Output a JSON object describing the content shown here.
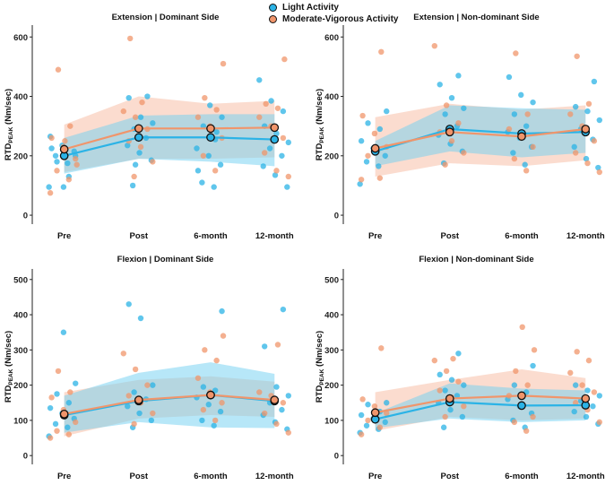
{
  "legend": {
    "light_label": "Light Activity",
    "mv_label": "Moderate-Vigorous Activity"
  },
  "colors": {
    "light": "#2BB3E6",
    "mv": "#F0956B",
    "light_band": "#6FD0F2",
    "mv_band": "#F8B9A0"
  },
  "ylabel_main": "RTD",
  "ylabel_sub": "PEAK",
  "ylabel_unit": " (Nm/sec)",
  "chart_data": [
    {
      "type": "line",
      "title": "Extension | Dominant Side",
      "categories": [
        "Pre",
        "Post",
        "6-month",
        "12-month"
      ],
      "ylim": [
        -30,
        640
      ],
      "yticks": [
        0,
        200,
        400,
        600
      ],
      "series": [
        {
          "name": "Light Activity",
          "means": [
            200,
            262,
            262,
            255
          ],
          "band_low": [
            140,
            190,
            180,
            165
          ],
          "band_high": [
            260,
            335,
            340,
            340
          ],
          "points": [
            [
              95,
              175,
              200,
              215,
              235,
              265,
              130,
              180,
              200,
              95,
              225
            ],
            [
              100,
              185,
              210,
              235,
              260,
              290,
              310,
              330,
              395,
              400,
              170
            ],
            [
              95,
              110,
              170,
              200,
              225,
              255,
              300,
              330,
              370,
              150,
              280
            ],
            [
              95,
              135,
              165,
              200,
              225,
              245,
              275,
              300,
              350,
              385,
              455
            ]
          ]
        },
        {
          "name": "Moderate-Vigorous Activity",
          "means": [
            222,
            292,
            292,
            295
          ],
          "band_low": [
            145,
            190,
            190,
            195
          ],
          "band_high": [
            305,
            400,
            375,
            385
          ],
          "points": [
            [
              75,
              120,
              150,
              190,
              230,
              260,
              300,
              490,
              170,
              250
            ],
            [
              130,
              180,
              230,
              250,
              290,
              330,
              350,
              380,
              595
            ],
            [
              150,
              200,
              260,
              300,
              330,
              355,
              395,
              510
            ],
            [
              130,
              150,
              210,
              260,
              300,
              330,
              360,
              375,
              525
            ]
          ]
        }
      ]
    },
    {
      "type": "line",
      "title": "Extension | Non-dominant Side",
      "categories": [
        "Pre",
        "Post",
        "6-month",
        "12-month"
      ],
      "ylim": [
        -30,
        640
      ],
      "yticks": [
        0,
        200,
        400,
        600
      ],
      "series": [
        {
          "name": "Light Activity",
          "means": [
            215,
            290,
            275,
            280
          ],
          "band_low": [
            165,
            215,
            195,
            210
          ],
          "band_high": [
            250,
            370,
            360,
            355
          ],
          "points": [
            [
              105,
              165,
              180,
              200,
              225,
              250,
              290,
              310,
              350
            ],
            [
              175,
              215,
              240,
              270,
              300,
              340,
              360,
              395,
              440,
              470
            ],
            [
              170,
              210,
              230,
              260,
              280,
              300,
              340,
              380,
              405,
              465
            ],
            [
              160,
              190,
              230,
              255,
              290,
              320,
              350,
              365,
              450
            ]
          ]
        },
        {
          "name": "Moderate-Vigorous Activity",
          "means": [
            225,
            280,
            265,
            290
          ],
          "band_low": [
            130,
            175,
            165,
            185
          ],
          "band_high": [
            330,
            375,
            355,
            370
          ],
          "points": [
            [
              120,
              125,
              200,
              230,
              275,
              335,
              550
            ],
            [
              170,
              210,
              250,
              280,
              310,
              370,
              570
            ],
            [
              150,
              190,
              230,
              260,
              290,
              340,
              545
            ],
            [
              145,
              175,
              210,
              250,
              300,
              340,
              375,
              535
            ]
          ]
        }
      ]
    },
    {
      "type": "line",
      "title": "Flexion | Dominant Side",
      "categories": [
        "Pre",
        "Post",
        "6-month",
        "12-month"
      ],
      "ylim": [
        -25,
        530
      ],
      "yticks": [
        0,
        100,
        200,
        300,
        400,
        500
      ],
      "series": [
        {
          "name": "Light Activity",
          "means": [
            115,
            155,
            172,
            155
          ],
          "band_low": [
            65,
            95,
            80,
            78
          ],
          "band_high": [
            170,
            235,
            265,
            232
          ],
          "points": [
            [
              55,
              80,
              90,
              105,
              120,
              135,
              150,
              175,
              205,
              350
            ],
            [
              80,
              100,
              120,
              140,
              160,
              180,
              200,
              390,
              430
            ],
            [
              85,
              100,
              125,
              145,
              165,
              185,
              195,
              410
            ],
            [
              75,
              95,
              115,
              130,
              150,
              170,
              195,
              310,
              415
            ]
          ]
        },
        {
          "name": "Moderate-Vigorous Activity",
          "means": [
            118,
            158,
            172,
            158
          ],
          "band_low": [
            55,
            105,
            115,
            110
          ],
          "band_high": [
            180,
            215,
            225,
            210
          ],
          "points": [
            [
              50,
              60,
              70,
              95,
              130,
              165,
              180,
              240
            ],
            [
              90,
              120,
              150,
              170,
              200,
              245,
              290
            ],
            [
              100,
              130,
              150,
              180,
              220,
              270,
              300,
              340
            ],
            [
              65,
              90,
              120,
              150,
              170,
              180,
              315
            ]
          ]
        }
      ]
    },
    {
      "type": "line",
      "title": "Flexion | Non-dominant Side",
      "categories": [
        "Pre",
        "Post",
        "6-month",
        "12-month"
      ],
      "ylim": [
        -25,
        530
      ],
      "yticks": [
        0,
        100,
        200,
        300,
        400,
        500
      ],
      "series": [
        {
          "name": "Light Activity",
          "means": [
            103,
            152,
            142,
            143
          ],
          "band_low": [
            78,
            105,
            95,
            100
          ],
          "band_high": [
            120,
            205,
            190,
            185
          ],
          "points": [
            [
              65,
              75,
              85,
              95,
              105,
              115,
              125,
              145,
              150
            ],
            [
              80,
              110,
              130,
              150,
              170,
              185,
              200,
              215,
              230,
              290
            ],
            [
              80,
              100,
              120,
              140,
              160,
              180,
              200,
              255
            ],
            [
              90,
              110,
              125,
              140,
              155,
              170,
              185,
              200
            ]
          ]
        },
        {
          "name": "Moderate-Vigorous Activity",
          "means": [
            122,
            162,
            170,
            162
          ],
          "band_low": [
            70,
            110,
            100,
            105
          ],
          "band_high": [
            180,
            215,
            245,
            220
          ],
          "points": [
            [
              60,
              80,
              100,
              120,
              140,
              160,
              305
            ],
            [
              110,
              140,
              165,
              185,
              210,
              240,
              270,
              275
            ],
            [
              70,
              95,
              110,
              140,
              170,
              200,
              240,
              300,
              365
            ],
            [
              95,
              130,
              150,
              180,
              200,
              235,
              270,
              295
            ]
          ]
        }
      ]
    }
  ]
}
